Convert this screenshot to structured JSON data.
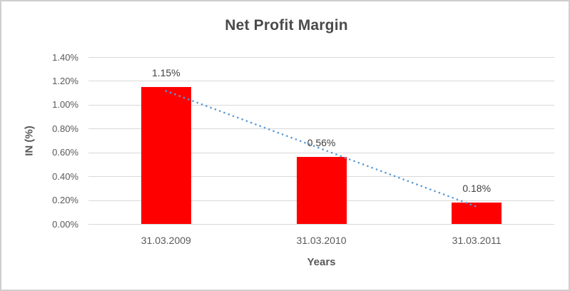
{
  "chart_data": {
    "type": "bar",
    "title": "Net Profit Margin",
    "categories": [
      "31.03.2009",
      "31.03.2010",
      "31.03.2011"
    ],
    "values": [
      1.15,
      0.56,
      0.18
    ],
    "data_labels": [
      "1.15%",
      "0.56%",
      "0.18%"
    ],
    "xlabel": "Years",
    "ylabel": "IN (%)",
    "ylim": [
      0,
      1.4
    ],
    "ytick_step": 0.2,
    "ytick_labels": [
      "0.00%",
      "0.20%",
      "0.40%",
      "0.60%",
      "0.80%",
      "1.00%",
      "1.20%",
      "1.40%"
    ],
    "grid": true,
    "legend": "none",
    "trendline": {
      "type": "linear",
      "style": "dotted"
    },
    "colors": {
      "bar": "#FF0000",
      "trendline": "#5B9BD5",
      "gridline": "#D9D9D9",
      "axis_text": "#595959",
      "title_text": "#4A4A4A",
      "data_label_text": "#404040",
      "frame_border": "#CFCFCF"
    }
  }
}
